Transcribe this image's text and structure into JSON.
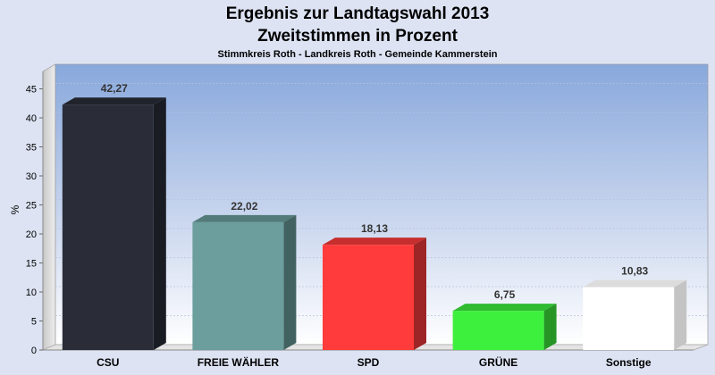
{
  "chart_data": {
    "type": "bar",
    "title": "Ergebnis zur Landtagswahl 2013",
    "title2": "Zweitstimmen in Prozent",
    "subtitle": "Stimmkreis Roth - Landkreis Roth - Gemeinde Kammerstein",
    "ylabel": "%",
    "ylim": [
      0,
      48
    ],
    "yticks": [
      0,
      5,
      10,
      15,
      20,
      25,
      30,
      35,
      40,
      45
    ],
    "grid": true,
    "categories": [
      "CSU",
      "FREIE WÄHLER",
      "SPD",
      "GRÜNE",
      "Sonstige"
    ],
    "values": [
      42.27,
      22.02,
      18.13,
      6.75,
      10.83
    ],
    "value_labels": [
      "42,27",
      "22,02",
      "18,13",
      "6,75",
      "10,83"
    ],
    "colors": [
      "#2a2d38",
      "#6b9e9c",
      "#ff3b3b",
      "#3ef03e",
      "#ffffff"
    ]
  }
}
